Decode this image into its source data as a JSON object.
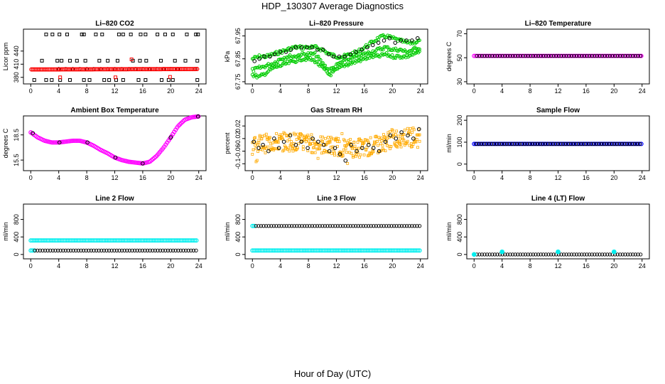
{
  "figure": {
    "title": "HDP_130307  Average Diagnostics",
    "xlabel": "Hour of Day (UTC)"
  },
  "chart_data": [
    {
      "type": "scatter",
      "title": "Li–820 CO2",
      "ylabel": "Licor ppm",
      "xlim": [
        0,
        24
      ],
      "ylim": [
        370,
        485
      ],
      "xticks": [
        0,
        4,
        8,
        12,
        16,
        20,
        24
      ],
      "yticks": [
        380,
        410,
        440
      ],
      "series": [
        {
          "name": "high",
          "color": "#000000",
          "style": "open-square",
          "x": [
            2.2,
            3.1,
            4.1,
            5.2,
            7.3,
            7.6,
            9.3,
            10.2,
            12.6,
            13.2,
            14.3,
            15.7,
            16.4,
            18.1,
            19.2,
            20.3,
            22.3,
            23.6,
            23.9
          ],
          "y": [
            478,
            478,
            478,
            478,
            478,
            478,
            478,
            478,
            478,
            478,
            478,
            478,
            478,
            478,
            478,
            478,
            478,
            478,
            478
          ]
        },
        {
          "name": "mid",
          "color": "#000000",
          "style": "open-square",
          "x": [
            1.6,
            3.8,
            4.4,
            5.6,
            6.6,
            7.8,
            9.8,
            11.0,
            12.4,
            14.6,
            15.6,
            16.5,
            18.6,
            20.6,
            22.1,
            23.8
          ],
          "y": [
            418,
            418,
            418,
            418,
            418,
            418,
            418,
            418,
            418,
            418,
            418,
            418,
            418,
            418,
            418,
            418
          ]
        },
        {
          "name": "low",
          "color": "#000000",
          "style": "open-square",
          "x": [
            0.5,
            2.2,
            3.0,
            4.2,
            5.6,
            7.6,
            8.4,
            10.5,
            11.2,
            12.2,
            13.2,
            15.4,
            16.4,
            18.7,
            19.7,
            20.3,
            23.8
          ],
          "y": [
            374,
            374,
            374,
            374,
            374,
            374,
            374,
            374,
            374,
            374,
            374,
            374,
            374,
            374,
            374,
            374,
            374
          ]
        },
        {
          "name": "flag-red",
          "color": "#ff0000",
          "style": "open-square",
          "x": [
            4.2,
            12.1,
            14.4,
            19.9
          ],
          "y": [
            380,
            380,
            421,
            381
          ]
        },
        {
          "name": "baseline-black",
          "color": "#000000",
          "style": "open-circle",
          "x": [
            0.3,
            1.2,
            2.1,
            3.0,
            4.0,
            5.0,
            6.0,
            7.0,
            8.0,
            9.0,
            10.0,
            11.0,
            12.0,
            13.0,
            14.0,
            15.0,
            16.0,
            17.0,
            18.0,
            19.0,
            20.0,
            21.0,
            22.0,
            23.5
          ],
          "y": [
            398,
            398,
            398,
            398,
            399,
            399,
            399,
            399,
            399,
            399,
            399,
            399,
            399,
            399,
            399,
            399,
            399,
            399,
            399,
            399,
            399,
            399,
            399,
            399
          ]
        },
        {
          "name": "baseline-red",
          "color": "#ff0000",
          "style": "dense",
          "x": [
            0.1,
            23.9
          ],
          "y": [
            398,
            399
          ]
        }
      ]
    },
    {
      "type": "scatter",
      "title": "Li–820 Pressure",
      "ylabel": "kPa",
      "xlim": [
        0,
        24
      ],
      "ylim": [
        67.75,
        67.97
      ],
      "xticks": [
        0,
        4,
        8,
        12,
        16,
        20,
        24
      ],
      "yticks": [
        67.75,
        67.85,
        67.95
      ],
      "series": [
        {
          "name": "green-upper",
          "color": "#00cc00",
          "style": "band",
          "x": [
            0.0,
            1.0,
            2.0,
            3.0,
            4.0,
            5.0,
            6.0,
            7.0,
            8.0,
            9.0,
            10.0,
            11.0,
            12.0,
            13.0,
            14.0,
            15.0,
            16.0,
            17.0,
            18.0,
            19.0,
            20.0,
            21.0,
            22.0,
            23.0,
            24.0
          ],
          "y": [
            67.85,
            67.86,
            67.86,
            67.87,
            67.88,
            67.89,
            67.9,
            67.9,
            67.9,
            67.9,
            67.89,
            67.87,
            67.86,
            67.86,
            67.87,
            67.88,
            67.9,
            67.92,
            67.94,
            67.95,
            67.94,
            67.93,
            67.92,
            67.92,
            67.93
          ]
        },
        {
          "name": "green-mid",
          "color": "#00cc00",
          "style": "band",
          "x": [
            0.0,
            1.0,
            2.0,
            3.0,
            4.0,
            5.0,
            6.0,
            7.0,
            8.0,
            9.0,
            10.0,
            11.0,
            12.0,
            13.0,
            14.0,
            15.0,
            16.0,
            17.0,
            18.0,
            19.0,
            20.0,
            21.0,
            22.0,
            23.0,
            24.0
          ],
          "y": [
            67.8,
            67.81,
            67.82,
            67.83,
            67.85,
            67.86,
            67.86,
            67.87,
            67.87,
            67.87,
            67.83,
            67.8,
            67.82,
            67.84,
            67.85,
            67.86,
            67.87,
            67.88,
            67.89,
            67.9,
            67.89,
            67.89,
            67.88,
            67.89,
            67.9
          ]
        },
        {
          "name": "green-lower",
          "color": "#00cc00",
          "style": "band",
          "x": [
            0.0,
            1.0,
            2.0,
            3.0,
            4.0,
            5.0,
            6.0,
            7.0,
            8.0,
            9.0,
            10.0,
            11.0,
            12.0,
            13.0,
            14.0,
            15.0,
            16.0,
            17.0,
            18.0,
            19.0,
            20.0,
            21.0,
            22.0,
            23.0,
            24.0
          ],
          "y": [
            67.78,
            67.77,
            67.79,
            67.81,
            67.82,
            67.83,
            67.84,
            67.85,
            67.85,
            67.84,
            67.81,
            67.78,
            67.8,
            67.82,
            67.83,
            67.84,
            67.85,
            67.86,
            67.86,
            67.87,
            67.86,
            67.86,
            67.86,
            67.87,
            67.88
          ]
        },
        {
          "name": "black",
          "color": "#000000",
          "style": "open-circle",
          "x": [
            0.3,
            1.0,
            1.7,
            2.5,
            3.2,
            4.0,
            4.8,
            5.5,
            6.2,
            7.0,
            7.8,
            8.5,
            9.3,
            10.1,
            10.9,
            11.6,
            12.4,
            13.2,
            14.0,
            14.8,
            15.6,
            16.4,
            17.2,
            18.0,
            18.8,
            19.6,
            20.4,
            21.2,
            22.0,
            22.8,
            23.6
          ],
          "y": [
            67.84,
            67.85,
            67.86,
            67.86,
            67.87,
            67.88,
            67.88,
            67.89,
            67.9,
            67.9,
            67.9,
            67.9,
            67.89,
            67.89,
            67.87,
            67.86,
            67.86,
            67.86,
            67.87,
            67.88,
            67.89,
            67.9,
            67.91,
            67.92,
            67.93,
            67.94,
            67.92,
            67.93,
            67.93,
            67.93,
            67.94
          ]
        }
      ]
    },
    {
      "type": "scatter",
      "title": "Li–820 Temperature",
      "ylabel": "degrees C",
      "xlim": [
        0,
        24
      ],
      "ylim": [
        30,
        72
      ],
      "xticks": [
        0,
        4,
        8,
        12,
        16,
        20,
        24
      ],
      "yticks": [
        30,
        50,
        70
      ],
      "series": [
        {
          "name": "magenta",
          "color": "#ff00ff",
          "style": "dense",
          "x": [
            0.0,
            24.0
          ],
          "y": [
            51.5,
            51.5
          ]
        },
        {
          "name": "black",
          "color": "#000000",
          "style": "open-circle-dense",
          "x": [
            0.4,
            23.8
          ],
          "y": [
            51.5,
            51.5
          ]
        }
      ]
    },
    {
      "type": "scatter",
      "title": "Ambient Box Temperature",
      "ylabel": "degrees C",
      "xlim": [
        0,
        24
      ],
      "ylim": [
        14.5,
        20.5
      ],
      "xticks": [
        0,
        4,
        8,
        12,
        16,
        20,
        24
      ],
      "yticks": [
        15.5,
        18.5
      ],
      "series": [
        {
          "name": "magenta",
          "color": "#ff00ff",
          "style": "curve",
          "x": [
            0.0,
            1.0,
            2.0,
            3.0,
            4.0,
            5.0,
            6.0,
            7.0,
            8.0,
            9.0,
            10.0,
            11.0,
            12.0,
            13.0,
            14.0,
            15.0,
            16.0,
            17.0,
            18.0,
            19.0,
            20.0,
            21.0,
            22.0,
            23.0,
            24.0
          ],
          "y": [
            18.8,
            18.2,
            17.8,
            17.6,
            17.6,
            17.7,
            17.8,
            17.8,
            17.6,
            17.2,
            16.7,
            16.3,
            15.8,
            15.5,
            15.3,
            15.2,
            15.1,
            15.3,
            16.0,
            17.0,
            18.2,
            19.5,
            20.3,
            20.6,
            20.7
          ]
        },
        {
          "name": "black",
          "color": "#000000",
          "style": "open-circle",
          "x": [
            0.3,
            4.1,
            8.1,
            12.1,
            16.0,
            20.0,
            23.9
          ],
          "y": [
            18.7,
            17.6,
            17.6,
            15.8,
            15.1,
            18.2,
            20.7
          ]
        }
      ]
    },
    {
      "type": "scatter",
      "title": "Gas Stream RH",
      "ylabel": "percent",
      "xlim": [
        0,
        24
      ],
      "ylim": [
        -0.115,
        0.045
      ],
      "xticks": [
        0,
        4,
        8,
        12,
        16,
        20,
        24
      ],
      "yticks": [
        -0.1,
        -0.06,
        -0.02,
        0.02
      ],
      "series": [
        {
          "name": "orange-noise",
          "color": "#ffaa00",
          "style": "noise",
          "x": [
            0.0,
            2.0,
            4.0,
            6.0,
            8.0,
            10.0,
            12.0,
            14.0,
            16.0,
            18.0,
            20.0,
            22.0,
            24.0
          ],
          "y": [
            -0.04,
            -0.035,
            -0.03,
            -0.03,
            -0.035,
            -0.04,
            -0.045,
            -0.05,
            -0.05,
            -0.04,
            -0.02,
            -0.015,
            -0.02
          ]
        },
        {
          "name": "black",
          "color": "#000000",
          "style": "open-circle",
          "x": [
            0.2,
            0.9,
            1.5,
            2.3,
            3.1,
            3.8,
            4.5,
            5.4,
            6.2,
            7.0,
            7.9,
            8.6,
            9.4,
            10.2,
            11.0,
            11.8,
            12.5,
            13.3,
            14.1,
            14.9,
            15.7,
            16.6,
            17.3,
            18.1,
            19.0,
            19.7,
            20.5,
            21.3,
            22.2,
            23.0,
            23.8
          ],
          "y": [
            -0.03,
            -0.05,
            -0.04,
            -0.06,
            -0.02,
            -0.05,
            -0.03,
            -0.01,
            -0.04,
            -0.03,
            -0.05,
            -0.02,
            -0.03,
            -0.04,
            -0.06,
            -0.05,
            -0.07,
            -0.09,
            -0.04,
            -0.06,
            -0.05,
            -0.04,
            -0.05,
            -0.06,
            -0.03,
            -0.01,
            -0.02,
            0.0,
            -0.01,
            -0.02,
            0.01
          ]
        }
      ]
    },
    {
      "type": "scatter",
      "title": "Sample Flow",
      "ylabel": "ml/min",
      "xlim": [
        0,
        24
      ],
      "ylim": [
        -20,
        210
      ],
      "xticks": [
        0,
        4,
        8,
        12,
        16,
        20,
        24
      ],
      "yticks": [
        0,
        100,
        200
      ],
      "series": [
        {
          "name": "blue",
          "color": "#0000ff",
          "style": "dense",
          "x": [
            0.0,
            24.0
          ],
          "y": [
            92,
            92
          ]
        },
        {
          "name": "black",
          "color": "#000000",
          "style": "open-circle-dense",
          "x": [
            0.3,
            23.9
          ],
          "y": [
            92,
            92
          ]
        }
      ]
    },
    {
      "type": "scatter",
      "title": "Line 2 Flow",
      "ylabel": "ml/min",
      "xlim": [
        0,
        24
      ],
      "ylim": [
        -50,
        1100
      ],
      "xticks": [
        0,
        4,
        8,
        12,
        16,
        20,
        24
      ],
      "yticks": [
        0,
        400,
        800
      ],
      "series": [
        {
          "name": "cyan-upper",
          "color": "#00eeee",
          "style": "dense",
          "x": [
            0.0,
            23.8
          ],
          "y": [
            320,
            320
          ]
        },
        {
          "name": "cyan-lower",
          "color": "#00eeee",
          "style": "dense",
          "x": [
            0.0,
            0.5
          ],
          "y": [
            90,
            90
          ]
        },
        {
          "name": "black",
          "color": "#000000",
          "style": "open-circle-dense",
          "x": [
            0.6,
            23.9
          ],
          "y": [
            90,
            90
          ]
        }
      ]
    },
    {
      "type": "scatter",
      "title": "Line 3 Flow",
      "ylabel": "ml/min",
      "xlim": [
        0,
        24
      ],
      "ylim": [
        -50,
        1100
      ],
      "xticks": [
        0,
        4,
        8,
        12,
        16,
        20,
        24
      ],
      "yticks": [
        0,
        400,
        800
      ],
      "series": [
        {
          "name": "cyan-upper",
          "color": "#00eeee",
          "style": "dense",
          "x": [
            0.0,
            0.4
          ],
          "y": [
            650,
            650
          ]
        },
        {
          "name": "black-upper",
          "color": "#000000",
          "style": "open-circle-dense",
          "x": [
            0.5,
            23.9
          ],
          "y": [
            650,
            650
          ]
        },
        {
          "name": "cyan-lower",
          "color": "#00eeee",
          "style": "dense",
          "x": [
            0.0,
            23.9
          ],
          "y": [
            90,
            90
          ]
        }
      ]
    },
    {
      "type": "scatter",
      "title": "Line 4 (LT) Flow",
      "ylabel": "ml/min",
      "xlim": [
        0,
        24
      ],
      "ylim": [
        -50,
        1100
      ],
      "xticks": [
        0,
        4,
        8,
        12,
        16,
        20,
        24
      ],
      "yticks": [
        0,
        400,
        800
      ],
      "series": [
        {
          "name": "black",
          "color": "#000000",
          "style": "open-circle-dense",
          "x": [
            0.4,
            23.9
          ],
          "y": [
            0,
            0
          ]
        },
        {
          "name": "cyan",
          "color": "#00eeee",
          "style": "filled-circle",
          "x": [
            0.0,
            4.0,
            12.0,
            20.0
          ],
          "y": [
            0,
            60,
            60,
            60
          ]
        }
      ]
    }
  ]
}
